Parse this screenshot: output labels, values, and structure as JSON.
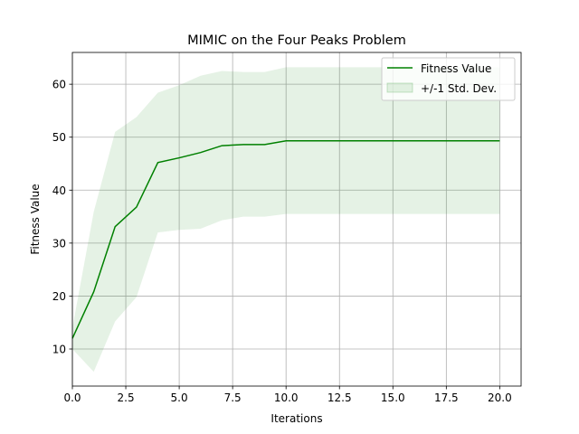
{
  "chart_data": {
    "type": "line",
    "title": "MIMIC on the Four Peaks Problem",
    "xlabel": "Iterations",
    "ylabel": "Fitness Value",
    "xlim": [
      0,
      21
    ],
    "ylim": [
      3,
      66
    ],
    "xticks": [
      0,
      2.5,
      5,
      7.5,
      10,
      12.5,
      15,
      17.5,
      20
    ],
    "xtick_labels": [
      "0.0",
      "2.5",
      "5.0",
      "7.5",
      "10.0",
      "12.5",
      "15.0",
      "17.5",
      "20.0"
    ],
    "yticks": [
      10,
      20,
      30,
      40,
      50,
      60
    ],
    "ytick_labels": [
      "10",
      "20",
      "30",
      "40",
      "50",
      "60"
    ],
    "grid": true,
    "legend_position": "top-right",
    "x": [
      0,
      1,
      2,
      3,
      4,
      5,
      6,
      7,
      8,
      9,
      10,
      11,
      12,
      13,
      14,
      15,
      16,
      17,
      18,
      19,
      20
    ],
    "series": [
      {
        "name": "Fitness Value",
        "color": "#008000",
        "values": [
          12.0,
          20.8,
          33.1,
          36.8,
          45.2,
          46.1,
          47.1,
          48.4,
          48.6,
          48.6,
          49.3,
          49.3,
          49.3,
          49.3,
          49.3,
          49.3,
          49.3,
          49.3,
          49.3,
          49.3,
          49.3
        ]
      }
    ],
    "band": {
      "name": "+/-1 Std. Dev.",
      "color": "#008000",
      "opacity": 0.1,
      "lower": [
        10.0,
        5.7,
        15.2,
        19.8,
        32.0,
        32.5,
        32.7,
        34.3,
        35.0,
        35.0,
        35.5,
        35.5,
        35.5,
        35.5,
        35.5,
        35.5,
        35.5,
        35.5,
        35.5,
        35.5,
        35.5
      ],
      "upper": [
        14.0,
        35.9,
        51.0,
        53.8,
        58.4,
        59.8,
        61.6,
        62.5,
        62.3,
        62.3,
        63.2,
        63.2,
        63.2,
        63.2,
        63.2,
        63.2,
        63.2,
        63.2,
        63.2,
        63.2,
        63.2
      ]
    }
  }
}
